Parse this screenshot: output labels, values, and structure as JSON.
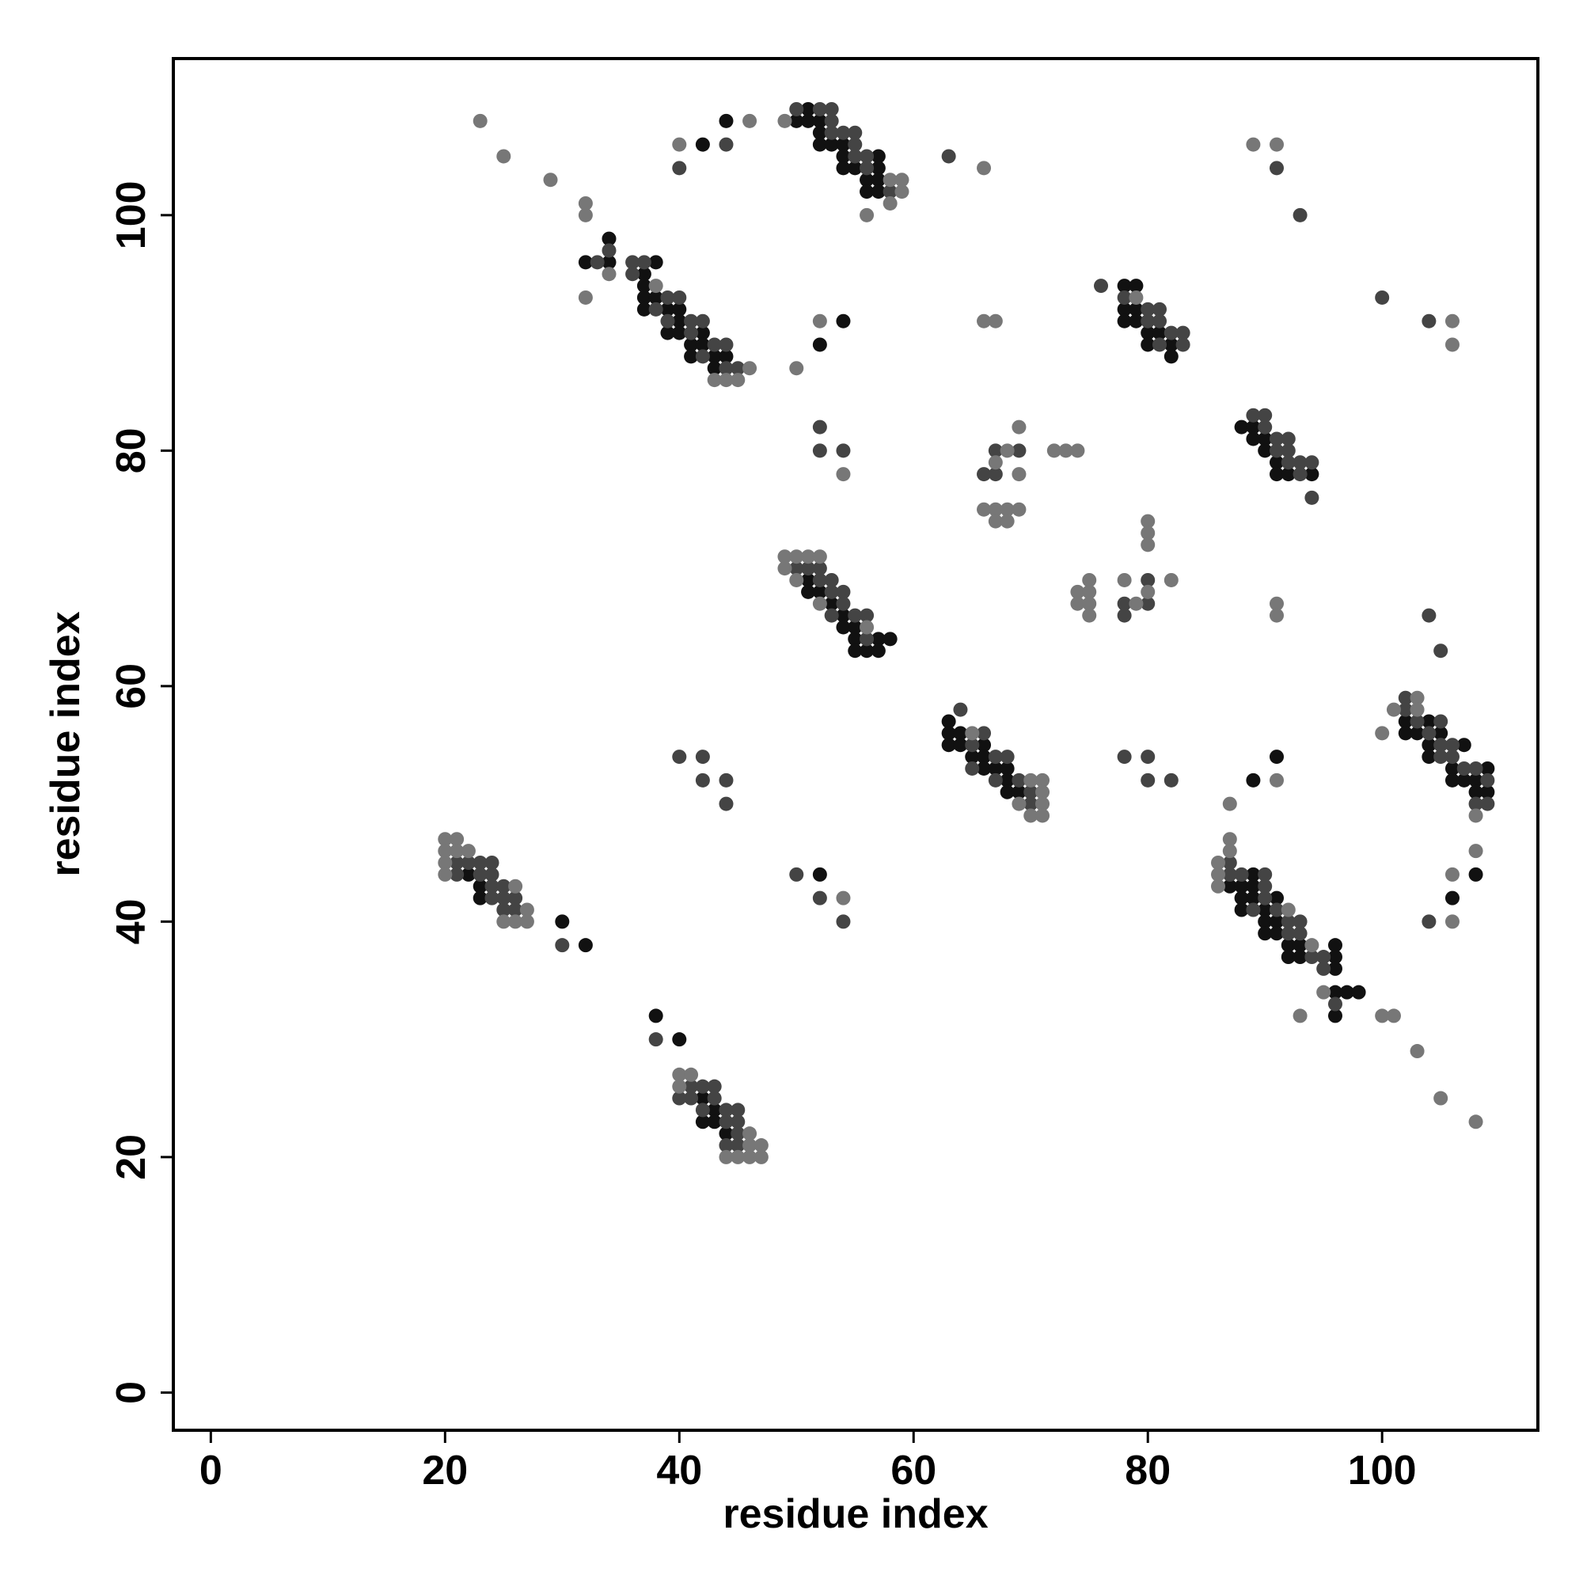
{
  "chart_data": {
    "type": "scatter",
    "xlabel": "residue index",
    "ylabel": "residue index",
    "xlim": [
      -3.2,
      113.3
    ],
    "ylim": [
      -3.2,
      113.3
    ],
    "xticks": [
      0,
      20,
      40,
      60,
      80,
      100
    ],
    "yticks": [
      0,
      20,
      40,
      60,
      80,
      100
    ],
    "grid": false,
    "series": [
      {
        "color": "#111111",
        "x": [
          34,
          32,
          34,
          38,
          37,
          37,
          37,
          38,
          37,
          39,
          40,
          40,
          39,
          40,
          42,
          41,
          42,
          41,
          43,
          44,
          43,
          51,
          50,
          51,
          52,
          52,
          52,
          53,
          54,
          54,
          57,
          54,
          55,
          57,
          56,
          57,
          56,
          57,
          42,
          44,
          54,
          52,
          78,
          79,
          78,
          79,
          78,
          79,
          80,
          81,
          80,
          82,
          82,
          88,
          89,
          89,
          90,
          90,
          91,
          91,
          92,
          94,
          51,
          51,
          52,
          53,
          54,
          54,
          55,
          55,
          57,
          58,
          55,
          56,
          57,
          63,
          63,
          64,
          63,
          64,
          66,
          65,
          66,
          66,
          67,
          68,
          68,
          68,
          69,
          102,
          104,
          102,
          103,
          105,
          104,
          107,
          104,
          106,
          109,
          106,
          107,
          108,
          108,
          109,
          108,
          106,
          89,
          91,
          22,
          23,
          23,
          30,
          32,
          52,
          89,
          87,
          88,
          89,
          88,
          89,
          91,
          88,
          90,
          90,
          91,
          90,
          91,
          92,
          93,
          96,
          92,
          93,
          96,
          96,
          96,
          97,
          98,
          96,
          38,
          40,
          42,
          43,
          42,
          43,
          44
        ],
        "values": [
          98,
          96,
          96,
          96,
          95,
          94,
          93,
          93,
          92,
          92,
          92,
          91,
          90,
          90,
          90,
          89,
          89,
          88,
          88,
          88,
          87,
          109,
          108,
          108,
          108,
          107,
          106,
          106,
          106,
          105,
          105,
          104,
          104,
          104,
          103,
          103,
          102,
          102,
          106,
          108,
          91,
          89,
          94,
          94,
          92,
          92,
          91,
          91,
          90,
          90,
          89,
          89,
          88,
          82,
          82,
          81,
          81,
          80,
          79,
          78,
          78,
          78,
          69,
          68,
          68,
          67,
          66,
          65,
          65,
          64,
          64,
          64,
          63,
          63,
          63,
          57,
          56,
          56,
          55,
          55,
          55,
          54,
          54,
          53,
          53,
          53,
          52,
          51,
          51,
          57,
          57,
          56,
          56,
          56,
          55,
          55,
          54,
          53,
          53,
          52,
          52,
          52,
          51,
          51,
          44,
          42,
          52,
          54,
          44,
          43,
          42,
          40,
          38,
          44,
          44,
          43,
          43,
          43,
          42,
          42,
          42,
          41,
          41,
          40,
          40,
          39,
          39,
          38,
          38,
          38,
          37,
          37,
          37,
          36,
          34,
          34,
          34,
          32,
          32,
          30,
          25,
          24,
          23,
          23,
          22
        ]
      },
      {
        "color": "#444444",
        "x": [
          33,
          34,
          36,
          37,
          36,
          39,
          40,
          38,
          39,
          41,
          42,
          41,
          43,
          44,
          42,
          44,
          45,
          50,
          52,
          53,
          53,
          53,
          54,
          55,
          55,
          55,
          56,
          56,
          58,
          40,
          44,
          63,
          91,
          93,
          100,
          104,
          76,
          78,
          80,
          81,
          80,
          81,
          82,
          83,
          81,
          83,
          52,
          52,
          54,
          66,
          67,
          67,
          69,
          89,
          90,
          90,
          91,
          92,
          91,
          92,
          92,
          93,
          94,
          93,
          94,
          50,
          51,
          52,
          52,
          53,
          53,
          54,
          54,
          55,
          53,
          56,
          56,
          80,
          78,
          80,
          78,
          104,
          105,
          64,
          66,
          65,
          67,
          68,
          65,
          67,
          69,
          70,
          70,
          102,
          102,
          103,
          105,
          104,
          105,
          106,
          105,
          106,
          107,
          108,
          109,
          108,
          109,
          104,
          40,
          42,
          42,
          44,
          44,
          78,
          80,
          80,
          82,
          21,
          22,
          23,
          24,
          21,
          23,
          24,
          24,
          25,
          24,
          25,
          26,
          25,
          26,
          30,
          50,
          52,
          54,
          87,
          87,
          88,
          90,
          90,
          90,
          89,
          91,
          92,
          93,
          92,
          93,
          94,
          95,
          95,
          96,
          38,
          41,
          42,
          43,
          40,
          41,
          43,
          42,
          44,
          45,
          44,
          45,
          45,
          44,
          45
        ],
        "values": [
          96,
          97,
          96,
          96,
          95,
          93,
          93,
          92,
          91,
          91,
          91,
          90,
          89,
          89,
          88,
          87,
          87,
          109,
          109,
          109,
          108,
          107,
          107,
          107,
          106,
          105,
          105,
          104,
          102,
          104,
          106,
          105,
          104,
          100,
          93,
          91,
          94,
          93,
          92,
          92,
          91,
          91,
          90,
          90,
          89,
          89,
          82,
          80,
          80,
          78,
          78,
          80,
          80,
          83,
          83,
          82,
          81,
          81,
          80,
          80,
          79,
          79,
          79,
          78,
          76,
          70,
          70,
          70,
          69,
          69,
          68,
          68,
          67,
          66,
          66,
          66,
          64,
          69,
          67,
          67,
          66,
          66,
          63,
          58,
          56,
          55,
          54,
          54,
          53,
          52,
          52,
          51,
          50,
          59,
          58,
          57,
          57,
          56,
          55,
          55,
          54,
          54,
          53,
          53,
          52,
          50,
          50,
          40,
          54,
          54,
          52,
          52,
          50,
          54,
          54,
          52,
          52,
          45,
          45,
          45,
          45,
          44,
          44,
          44,
          43,
          43,
          42,
          42,
          42,
          41,
          41,
          38,
          44,
          42,
          40,
          45,
          44,
          44,
          44,
          43,
          42,
          41,
          41,
          40,
          40,
          39,
          39,
          37,
          37,
          36,
          33,
          30,
          26,
          26,
          26,
          25,
          25,
          25,
          24,
          24,
          24,
          23,
          23,
          22,
          21,
          21
        ]
      },
      {
        "color": "#777777",
        "x": [
          23,
          25,
          29,
          32,
          32,
          32,
          34,
          38,
          46,
          43,
          44,
          45,
          50,
          49,
          58,
          59,
          59,
          58,
          56,
          40,
          46,
          66,
          89,
          91,
          106,
          106,
          52,
          66,
          67,
          79,
          54,
          68,
          69,
          67,
          69,
          66,
          67,
          68,
          69,
          67,
          68,
          72,
          73,
          74,
          49,
          50,
          51,
          52,
          49,
          50,
          52,
          56,
          75,
          74,
          75,
          74,
          75,
          75,
          78,
          82,
          80,
          80,
          80,
          79,
          80,
          91,
          91,
          65,
          70,
          71,
          71,
          69,
          71,
          70,
          71,
          100,
          101,
          103,
          103,
          108,
          108,
          106,
          106,
          91,
          87,
          20,
          21,
          20,
          21,
          22,
          20,
          20,
          26,
          27,
          25,
          26,
          27,
          54,
          87,
          87,
          86,
          86,
          86,
          92,
          94,
          95,
          93,
          100,
          101,
          103,
          105,
          108,
          40,
          41,
          40,
          46,
          46,
          47,
          44,
          45,
          46,
          47
        ],
        "values": [
          108,
          105,
          103,
          101,
          100,
          93,
          95,
          94,
          87,
          86,
          86,
          86,
          87,
          108,
          103,
          103,
          102,
          101,
          100,
          106,
          108,
          104,
          106,
          106,
          91,
          89,
          91,
          91,
          91,
          93,
          78,
          80,
          82,
          79,
          78,
          75,
          75,
          75,
          75,
          74,
          74,
          80,
          80,
          80,
          71,
          71,
          71,
          71,
          70,
          69,
          67,
          65,
          69,
          68,
          68,
          67,
          67,
          66,
          69,
          69,
          74,
          73,
          72,
          67,
          68,
          67,
          66,
          56,
          52,
          52,
          51,
          50,
          50,
          49,
          49,
          56,
          58,
          59,
          58,
          49,
          46,
          44,
          40,
          52,
          50,
          47,
          47,
          46,
          46,
          46,
          45,
          44,
          43,
          41,
          40,
          40,
          40,
          42,
          47,
          46,
          45,
          44,
          43,
          41,
          38,
          34,
          32,
          32,
          32,
          29,
          25,
          23,
          27,
          27,
          26,
          22,
          21,
          21,
          20,
          20,
          20,
          20
        ]
      }
    ]
  }
}
